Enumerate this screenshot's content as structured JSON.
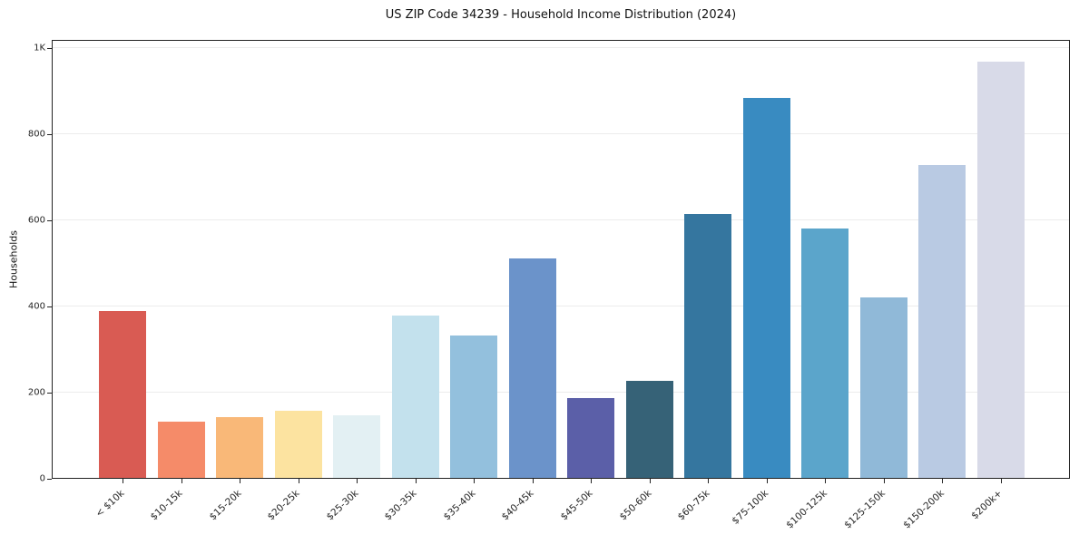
{
  "chart_data": {
    "type": "bar",
    "title": "US ZIP Code 34239 - Household Income Distribution (2024)",
    "xlabel": "",
    "ylabel": "Households",
    "ylim": [
      0,
      1000
    ],
    "grid": true,
    "legend": "none",
    "categories": [
      "< $10k",
      "$10-15k",
      "$15-20k",
      "$20-25k",
      "$25-30k",
      "$30-35k",
      "$35-40k",
      "$40-45k",
      "$45-50k",
      "$50-60k",
      "$60-75k",
      "$75-100k",
      "$100-125k",
      "$125-150k",
      "$150-200k",
      "$200k+"
    ],
    "values": [
      388,
      131,
      142,
      156,
      145,
      377,
      330,
      510,
      186,
      226,
      613,
      883,
      580,
      420,
      727,
      966
    ],
    "bar_colors": [
      "#d95b53",
      "#f58b69",
      "#f9b878",
      "#fce3a0",
      "#e3f0f3",
      "#c3e1ed",
      "#93c0dd",
      "#6b93ca",
      "#5b5fa8",
      "#366277",
      "#35769f",
      "#398bc1",
      "#5ba5cb",
      "#90b9d8",
      "#b9cae3",
      "#d8dae8"
    ],
    "ytick_values": [
      0,
      200,
      400,
      600,
      800,
      1000
    ],
    "ytick_labels": [
      "0",
      "200",
      "400",
      "600",
      "800",
      "1K"
    ]
  }
}
